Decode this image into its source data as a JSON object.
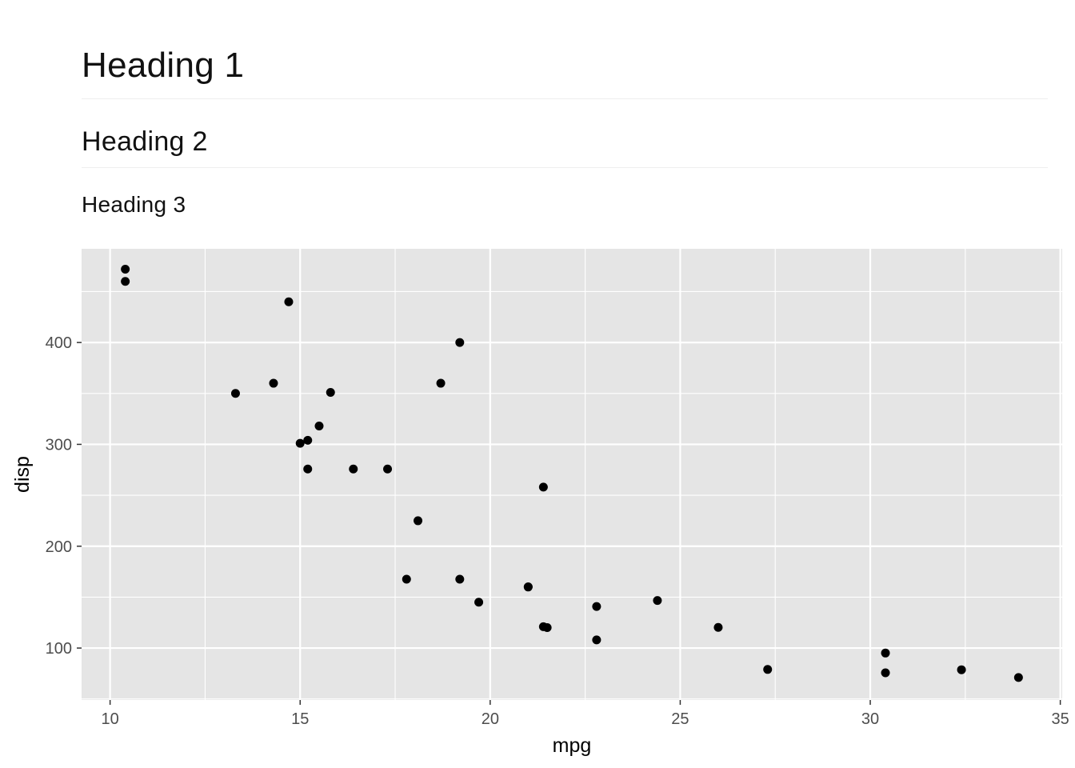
{
  "headings": {
    "h1": "Heading 1",
    "h2": "Heading 2",
    "h3": "Heading 3"
  },
  "chart_data": {
    "type": "scatter",
    "title": "",
    "xlabel": "mpg",
    "ylabel": "disp",
    "xlim": [
      9.25,
      35.05
    ],
    "ylim": [
      49,
      492
    ],
    "x_ticks": [
      10,
      15,
      20,
      25,
      30,
      35
    ],
    "y_ticks": [
      100,
      200,
      300,
      400
    ],
    "x_tick_labels": [
      "10",
      "15",
      "20",
      "25",
      "30",
      "35"
    ],
    "y_tick_labels": [
      "100",
      "200",
      "300",
      "400"
    ],
    "grid": true,
    "panel_color": "#e5e5e5",
    "grid_color": "#ffffff",
    "point_color": "#000000",
    "series": [
      {
        "x": [
          21.0,
          21.0,
          22.8,
          21.4,
          18.7,
          18.1,
          14.3,
          24.4,
          22.8,
          19.2,
          17.8,
          16.4,
          17.3,
          15.2,
          10.4,
          10.4,
          14.7,
          32.4,
          30.4,
          33.9,
          21.5,
          15.5,
          15.2,
          13.3,
          19.2,
          27.3,
          26.0,
          30.4,
          15.8,
          19.7,
          15.0,
          21.4
        ],
        "y": [
          160.0,
          160.0,
          108.0,
          258.0,
          360.0,
          225.0,
          360.0,
          146.7,
          140.8,
          167.6,
          167.6,
          275.8,
          275.8,
          275.8,
          472.0,
          460.0,
          440.0,
          78.7,
          75.7,
          71.1,
          120.1,
          318.0,
          304.0,
          350.0,
          400.0,
          79.0,
          120.3,
          95.1,
          351.0,
          145.0,
          301.0,
          121.0
        ]
      }
    ]
  }
}
